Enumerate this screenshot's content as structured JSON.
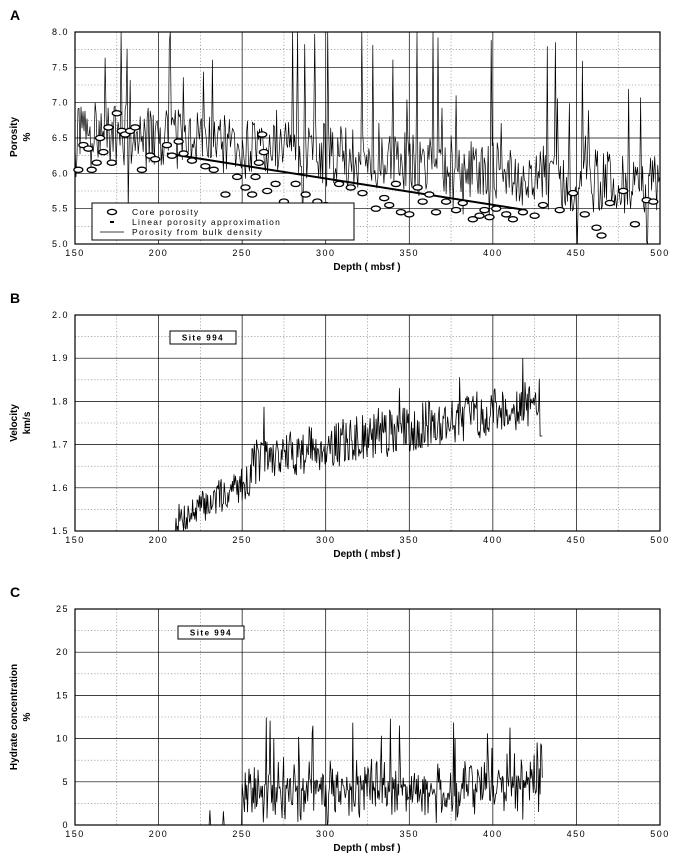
{
  "chart_data": [
    {
      "panel": "A",
      "type": "line",
      "xlabel": "Depth ( mbsf )",
      "ylabel": "Porosity",
      "yunit": "%",
      "xlim": [
        150,
        500
      ],
      "ylim": [
        5.0,
        8.0
      ],
      "x_ticks": [
        150,
        200,
        250,
        300,
        350,
        400,
        450,
        500
      ],
      "y_ticks": [
        5.0,
        5.5,
        6.0,
        6.5,
        7.0,
        7.5,
        8.0
      ],
      "x_tick_labels": [
        "150",
        "200",
        "250",
        "300",
        "350",
        "400",
        "450",
        "500"
      ],
      "y_tick_labels": [
        "5.0",
        "5.5",
        "6.0",
        "6.5",
        "7.0",
        "7.5",
        "8.0"
      ],
      "grid": true,
      "legend": {
        "placement": "bottom-left",
        "entries": [
          "Core porosity",
          "Linear porosity approximation",
          "Porosity from bulk density"
        ]
      },
      "series": [
        {
          "name": "Core porosity",
          "kind": "scatter",
          "x": [
            152,
            155,
            158,
            160,
            163,
            165,
            167,
            170,
            172,
            175,
            178,
            180,
            183,
            186,
            190,
            195,
            198,
            205,
            208,
            212,
            215,
            220,
            228,
            233,
            240,
            247,
            252,
            256,
            258,
            260,
            262,
            263,
            265,
            270,
            275,
            282,
            288,
            295,
            300,
            308,
            315,
            322,
            330,
            335,
            338,
            342,
            345,
            350,
            355,
            358,
            362,
            366,
            372,
            378,
            382,
            388,
            392,
            395,
            398,
            402,
            408,
            412,
            418,
            425,
            430,
            440,
            448,
            455,
            462,
            465,
            470,
            478,
            485,
            492,
            496
          ],
          "y": [
            6.05,
            6.4,
            6.35,
            6.05,
            6.15,
            6.5,
            6.3,
            6.65,
            6.15,
            6.85,
            6.6,
            6.55,
            6.6,
            6.65,
            6.05,
            6.25,
            6.2,
            6.4,
            6.25,
            6.45,
            6.28,
            6.18,
            6.1,
            6.05,
            5.7,
            5.95,
            5.8,
            5.7,
            5.95,
            6.15,
            6.55,
            6.3,
            5.75,
            5.85,
            5.6,
            5.85,
            5.7,
            5.6,
            5.55,
            5.85,
            5.8,
            5.72,
            5.5,
            5.65,
            5.55,
            5.85,
            5.45,
            5.42,
            5.8,
            5.6,
            5.7,
            5.45,
            5.6,
            5.48,
            5.58,
            5.35,
            5.4,
            5.48,
            5.38,
            5.5,
            5.42,
            5.35,
            5.45,
            5.4,
            5.55,
            5.48,
            5.72,
            5.42,
            5.23,
            5.12,
            5.58,
            5.75,
            5.28,
            5.62,
            5.6
          ]
        },
        {
          "name": "Linear porosity approximation",
          "kind": "line",
          "x": [
            205,
            420
          ],
          "y": [
            6.28,
            5.48
          ]
        },
        {
          "name": "Porosity from bulk density",
          "kind": "line",
          "x_range": [
            150,
            500
          ],
          "approx_level_start": 6.6,
          "approx_level_end": 5.8,
          "approx_min": 5.0,
          "approx_max": 8.0
        }
      ]
    },
    {
      "panel": "B",
      "type": "line",
      "xlabel": "Depth ( mbsf )",
      "ylabel": "Velocity",
      "yunit": "km/s",
      "xlim": [
        150,
        500
      ],
      "ylim": [
        1.5,
        2.0
      ],
      "x_ticks": [
        150,
        200,
        250,
        300,
        350,
        400,
        450,
        500
      ],
      "y_ticks": [
        1.5,
        1.6,
        1.7,
        1.8,
        1.9,
        2.0
      ],
      "x_tick_labels": [
        "150",
        "200",
        "250",
        "300",
        "350",
        "400",
        "450",
        "500"
      ],
      "y_tick_labels": [
        "1.5",
        "1.6",
        "1.7",
        "1.8",
        "1.9",
        "2.0"
      ],
      "grid": true,
      "annotation": "Site 994",
      "series": [
        {
          "kind": "line",
          "x_range": [
            210,
            430
          ],
          "approx_start": 1.52,
          "approx_end": 1.8,
          "approx_max": 1.9
        }
      ]
    },
    {
      "panel": "C",
      "type": "line",
      "xlabel": "Depth ( mbsf )",
      "ylabel": "Hydrate concentration",
      "yunit": "%",
      "xlim": [
        150,
        500
      ],
      "ylim": [
        0,
        25
      ],
      "x_ticks": [
        150,
        200,
        250,
        300,
        350,
        400,
        450,
        500
      ],
      "y_ticks": [
        0,
        5,
        10,
        15,
        20,
        25
      ],
      "x_tick_labels": [
        "150",
        "200",
        "250",
        "300",
        "350",
        "400",
        "450",
        "500"
      ],
      "y_tick_labels": [
        "0",
        "5",
        "10",
        "15",
        "20",
        "25"
      ],
      "grid": true,
      "annotation": "Site 994",
      "series": [
        {
          "kind": "line",
          "x_range": [
            228,
            430
          ],
          "approx_mean": 5,
          "approx_max": 18
        }
      ]
    }
  ]
}
